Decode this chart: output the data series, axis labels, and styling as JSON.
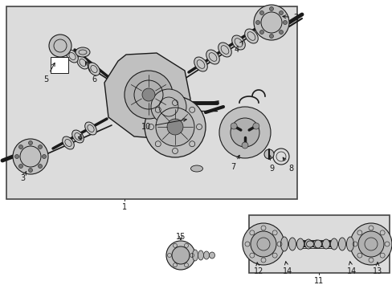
{
  "bg_color": "#ffffff",
  "box1_fc": "#dcdcdc",
  "box2_fc": "#dcdcdc",
  "lc": "#1a1a1a",
  "part_fc": "#c8c8c8",
  "part_fc2": "#e0e0e0",
  "font_size": 7
}
